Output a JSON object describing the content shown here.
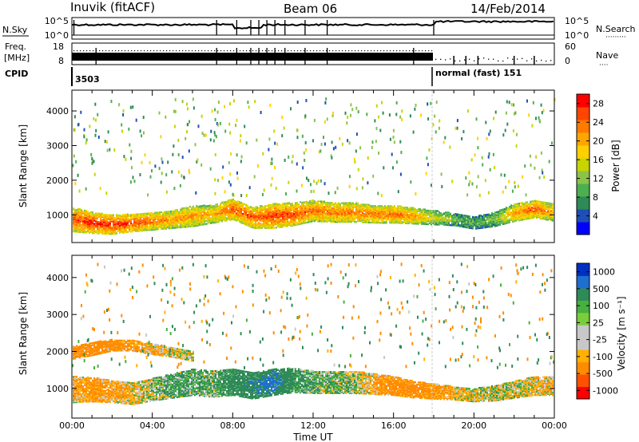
{
  "header": {
    "station": "Inuvik (fitACF)",
    "beam": "Beam 06",
    "date": "14/Feb/2014"
  },
  "top_panels": {
    "nsky": {
      "label": "N.Sky",
      "ticks": [
        "10^5",
        "10^0"
      ]
    },
    "nsearch": {
      "label": "N.Search",
      "ticks": [
        "10^5",
        "10^0"
      ],
      "legend_marker": "·········"
    },
    "freq": {
      "label_top": "Freq.",
      "label_unit": "[MHz]",
      "ticks": [
        "18",
        "8"
      ]
    },
    "nave": {
      "label": "Nave",
      "ticks": [
        "60",
        "0"
      ],
      "legend_marker": "····"
    },
    "cpid": {
      "label": "CPID",
      "first_value": "3503",
      "second_value": "normal (fast) 151"
    }
  },
  "colors": {
    "power_scale": [
      "#0000ff",
      "#1f4fb4",
      "#2e8b57",
      "#4caf50",
      "#8bc34a",
      "#c7d400",
      "#ffd000",
      "#ffa500",
      "#ff7a00",
      "#ff4500",
      "#ff0000"
    ],
    "velocity_scale": [
      "#0030c0",
      "#1e6fd0",
      "#2e8b57",
      "#48b040",
      "#7ccd3c",
      "#c8c8c8",
      "#c8c8c8",
      "#ffb000",
      "#ff8c00",
      "#ff5000",
      "#ff0000"
    ],
    "gridline": "#bbbbbb"
  },
  "chart_data": [
    {
      "type": "heatmap",
      "title": "",
      "xlabel": "Time UT",
      "ylabel": "Slant Range [km]",
      "x_ticks": [
        "00:00",
        "04:00",
        "08:00",
        "12:00",
        "16:00",
        "20:00",
        "00:00"
      ],
      "y_ticks": [
        "1000",
        "2000",
        "3000",
        "4000"
      ],
      "ylim": [
        200,
        4600
      ],
      "xlim_hours": [
        0,
        24
      ],
      "colorbar": {
        "label": "Power [dB]",
        "ticks": [
          "4",
          "8",
          "12",
          "16",
          "20",
          "24",
          "28"
        ],
        "range": [
          0,
          30
        ]
      },
      "bands": [
        {
          "t": [
            0,
            1,
            2,
            3,
            4,
            5,
            6,
            7,
            8,
            9,
            10,
            11,
            12,
            13,
            14,
            15,
            16,
            17,
            18,
            19,
            20,
            21,
            22,
            23,
            24
          ],
          "center_km": [
            900,
            800,
            750,
            800,
            850,
            900,
            1000,
            1050,
            1200,
            950,
            1000,
            1050,
            1150,
            1100,
            1100,
            1050,
            1050,
            1000,
            950,
            900,
            800,
            900,
            1100,
            1200,
            1100
          ],
          "width_km": [
            700,
            600,
            550,
            500,
            500,
            500,
            600,
            500,
            600,
            600,
            700,
            650,
            600,
            550,
            550,
            500,
            500,
            450,
            400,
            350,
            350,
            400,
            500,
            500,
            500
          ],
          "power_db": [
            26,
            28,
            28,
            27,
            24,
            22,
            22,
            21,
            26,
            25,
            27,
            26,
            24,
            24,
            24,
            24,
            24,
            22,
            16,
            12,
            10,
            12,
            22,
            26,
            20
          ]
        }
      ]
    },
    {
      "type": "heatmap",
      "title": "",
      "xlabel": "Time UT",
      "ylabel": "Slant Range [km]",
      "x_ticks": [
        "00:00",
        "04:00",
        "08:00",
        "12:00",
        "16:00",
        "20:00",
        "00:00"
      ],
      "y_ticks": [
        "1000",
        "2000",
        "3000",
        "4000"
      ],
      "ylim": [
        200,
        4600
      ],
      "xlim_hours": [
        0,
        24
      ],
      "colorbar": {
        "label": "Velocity [m s⁻¹]",
        "ticks": [
          "1000",
          "500",
          "100",
          "25",
          "-25",
          "-100",
          "-500",
          "-1000"
        ],
        "range": [
          -1000,
          1000
        ]
      },
      "bands": [
        {
          "t": [
            0,
            1,
            2,
            3,
            4,
            5,
            6,
            7,
            8,
            9,
            10,
            11,
            12,
            13,
            14,
            15,
            16,
            17,
            18,
            19,
            20,
            21,
            22,
            23,
            24
          ],
          "center_km": [
            1000,
            1000,
            950,
            900,
            1000,
            1100,
            1200,
            1150,
            1200,
            1100,
            1200,
            1250,
            1200,
            1200,
            1200,
            1150,
            1100,
            1000,
            950,
            900,
            850,
            900,
            1000,
            1100,
            1100
          ],
          "width_km": [
            700,
            650,
            600,
            600,
            600,
            650,
            700,
            700,
            700,
            700,
            700,
            650,
            600,
            600,
            600,
            550,
            500,
            450,
            400,
            350,
            350,
            400,
            450,
            500,
            500
          ],
          "velocity_ms": [
            -100,
            -200,
            -150,
            -80,
            20,
            150,
            120,
            80,
            300,
            500,
            700,
            200,
            100,
            60,
            50,
            -150,
            -250,
            -300,
            -200,
            -80,
            0,
            10,
            0,
            -50,
            -100
          ]
        },
        {
          "t": [
            0,
            1,
            2,
            3,
            4,
            5,
            6
          ],
          "center_km": [
            2000,
            2100,
            2200,
            2200,
            2100,
            2000,
            1900
          ],
          "width_km": [
            350,
            350,
            300,
            300,
            300,
            250,
            250
          ],
          "velocity_ms": [
            -300,
            -350,
            -300,
            -200,
            -100,
            -50,
            0
          ]
        }
      ]
    }
  ]
}
